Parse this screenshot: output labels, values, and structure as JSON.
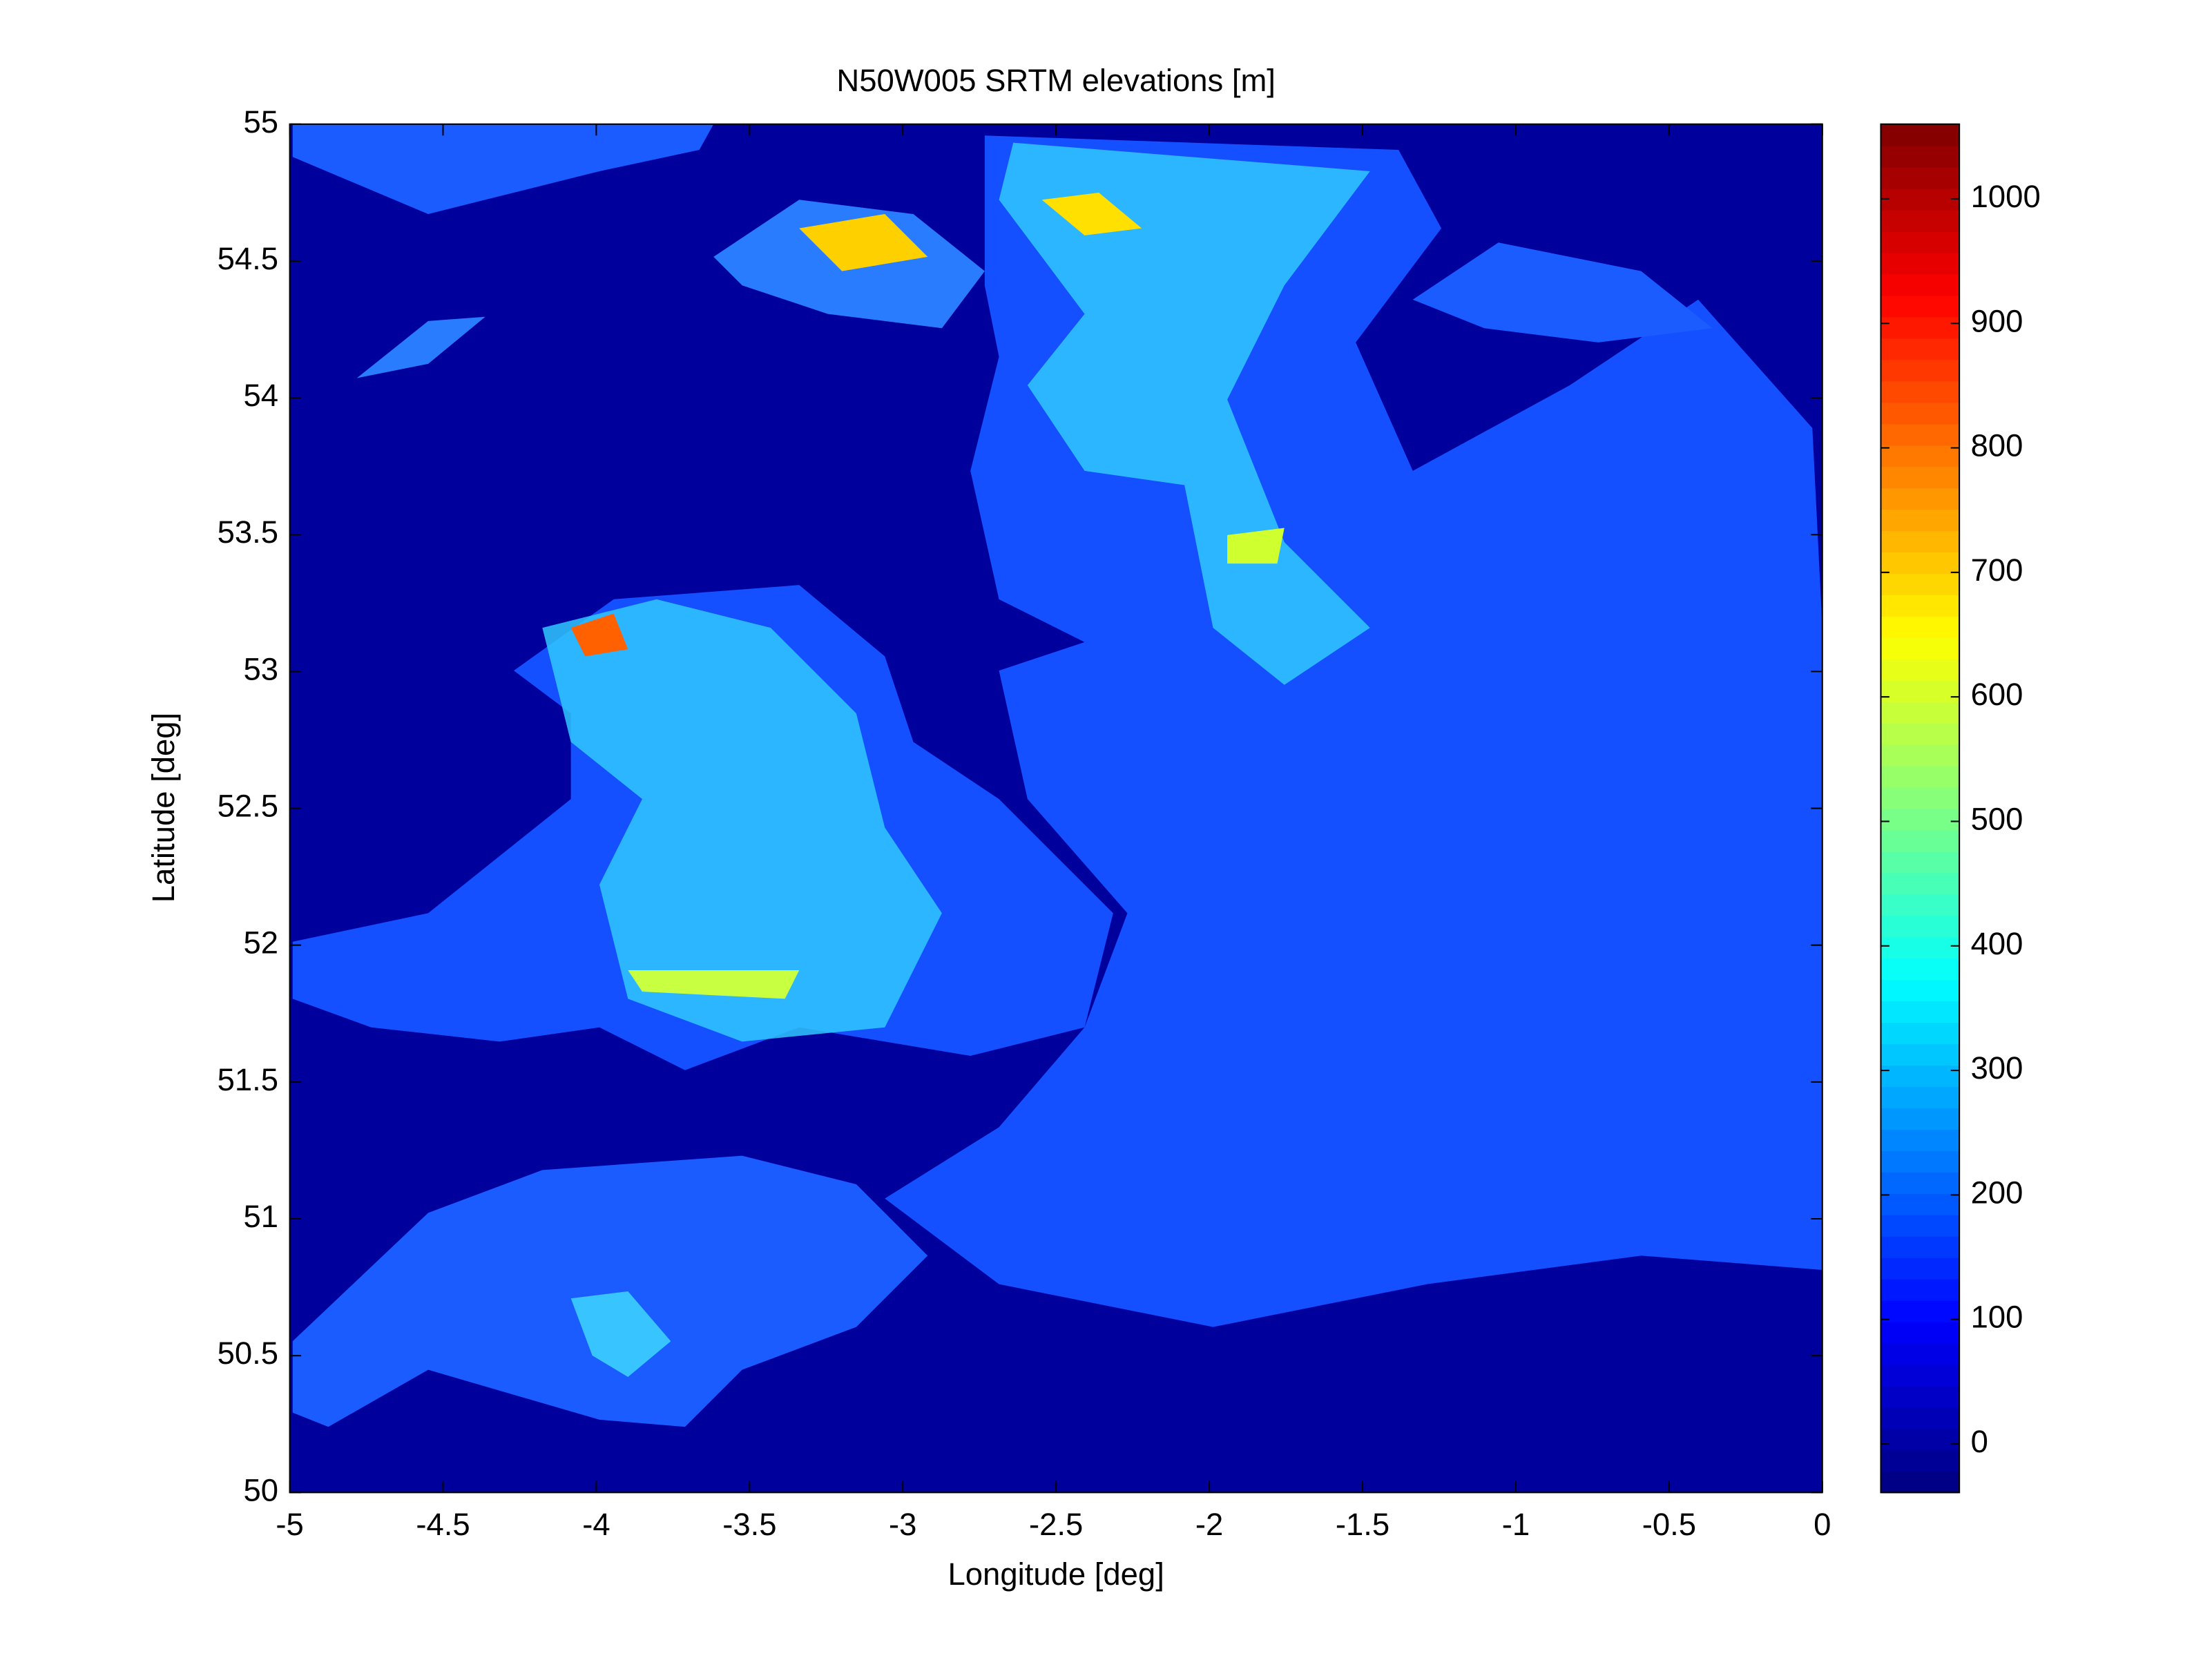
{
  "chart_data": {
    "type": "image",
    "title": "N50W005 SRTM elevations [m]",
    "xlabel": "Longitude [deg]",
    "ylabel": "Latitude [deg]",
    "xlim": [
      -5,
      0
    ],
    "ylim": [
      50,
      55
    ],
    "xticks": [
      -5,
      -4.5,
      -4,
      -3.5,
      -3,
      -2.5,
      -2,
      -1.5,
      -1,
      -0.5,
      0
    ],
    "yticks": [
      50,
      50.5,
      51,
      51.5,
      52,
      52.5,
      53,
      53.5,
      54,
      54.5,
      55
    ],
    "colormap": "jet",
    "clim": [
      -39,
      1060
    ],
    "cticks": [
      0,
      100,
      200,
      300,
      400,
      500,
      600,
      700,
      800,
      900,
      1000
    ]
  }
}
